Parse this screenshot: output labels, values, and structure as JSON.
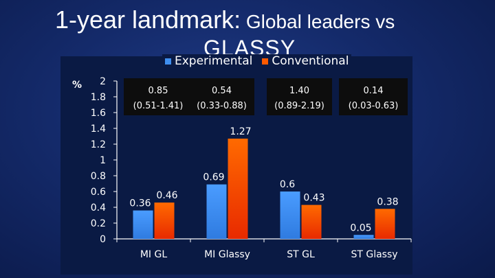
{
  "title": {
    "lead": "1-year landmark:",
    "rest": " Global leaders vs",
    "line2": "GLASSY"
  },
  "unit": "%",
  "legend": [
    {
      "name": "Experimental",
      "color": "#3f8ff0"
    },
    {
      "name": "Conventional",
      "color": "#ff5a00"
    }
  ],
  "ratio_boxes": [
    {
      "cells": [
        {
          "ratio": "0.85",
          "ci": "(0.51-1.41)"
        },
        {
          "ratio": "0.54",
          "ci": "(0.33-0.88)"
        }
      ]
    },
    {
      "cells": [
        {
          "ratio": "1.40",
          "ci": "(0.89-2.19)"
        }
      ]
    },
    {
      "cells": [
        {
          "ratio": "0.14",
          "ci": "(0.03-0.63)"
        }
      ]
    }
  ],
  "chart_data": {
    "type": "bar",
    "categories": [
      "MI  GL",
      "MI Glassy",
      "ST GL",
      "ST Glassy"
    ],
    "series": [
      {
        "name": "Experimental",
        "values": [
          0.36,
          0.69,
          0.6,
          0.05
        ],
        "labels": [
          "0.36",
          "0.69",
          "0.6",
          "0.05"
        ],
        "color": "#3f8ff0"
      },
      {
        "name": "Conventional",
        "values": [
          0.46,
          1.27,
          0.43,
          0.38
        ],
        "labels": [
          "0.46",
          "1.27",
          "0.43",
          "0.38"
        ],
        "color": "#ff5a00"
      }
    ],
    "yticks": [
      "0",
      "0.2",
      "0.4",
      "0.6",
      "0.8",
      "1",
      "1.2",
      "1.4",
      "1.6",
      "1.8",
      "2"
    ],
    "ylim": [
      0,
      2
    ],
    "grid": false,
    "legend_position": "top"
  }
}
